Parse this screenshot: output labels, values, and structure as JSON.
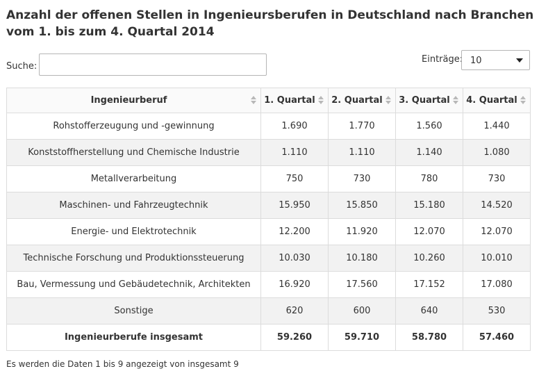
{
  "title": "Anzahl der offenen Stellen in Ingenieursberufen in Deutschland nach Branchen vom 1. bis zum 4. Quartal 2014",
  "search": {
    "label": "Suche:",
    "value": "",
    "placeholder": ""
  },
  "entries": {
    "label": "Einträge:",
    "selected": "10"
  },
  "icons": {
    "sort": "sort-both-icon",
    "dropdown": "chevron-down-icon"
  },
  "table": {
    "headers": [
      "Ingenieurberuf",
      "1. Quartal",
      "2. Quartal",
      "3. Quartal",
      "4. Quartal"
    ],
    "rows": [
      [
        "Rohstofferzeugung und -gewinnung",
        "1.690",
        "1.770",
        "1.560",
        "1.440"
      ],
      [
        "Konststoffherstellung und Chemische Industrie",
        "1.110",
        "1.110",
        "1.140",
        "1.080"
      ],
      [
        "Metallverarbeitung",
        "750",
        "730",
        "780",
        "730"
      ],
      [
        "Maschinen- und Fahrzeugtechnik",
        "15.950",
        "15.850",
        "15.180",
        "14.520"
      ],
      [
        "Energie- und Elektrotechnik",
        "12.200",
        "11.920",
        "12.070",
        "12.070"
      ],
      [
        "Technische Forschung und Produktionssteuerung",
        "10.030",
        "10.180",
        "10.260",
        "10.010"
      ],
      [
        "Bau, Vermessung und Gebäudetechnik, Architekten",
        "16.920",
        "17.560",
        "17.152",
        "17.080"
      ],
      [
        "Sonstige",
        "620",
        "600",
        "640",
        "530"
      ],
      [
        "Ingenieurberufe insgesamt",
        "59.260",
        "59.710",
        "58.780",
        "57.460"
      ]
    ]
  },
  "info": "Es werden die Daten 1 bis 9 angezeigt von insgesamt 9"
}
